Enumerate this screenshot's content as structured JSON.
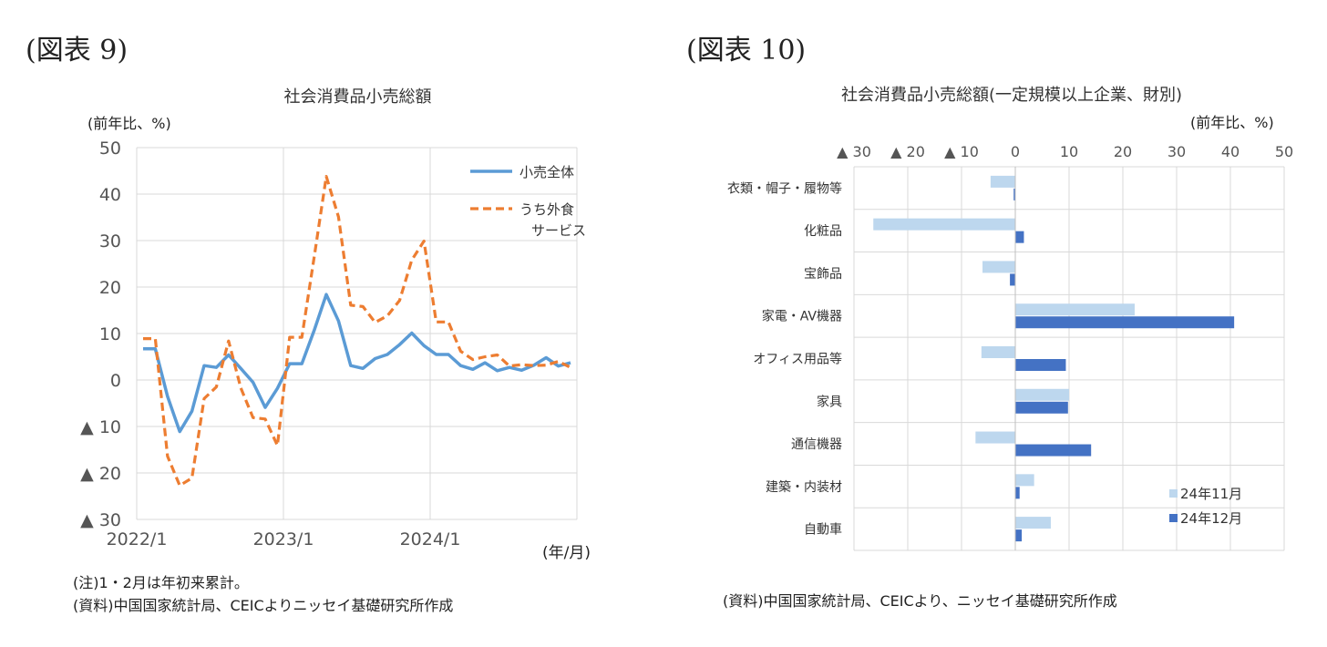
{
  "figure9": {
    "label": "(図表 9)",
    "unit": "(前年比、%)",
    "xunit": "(年/月)",
    "notes": [
      "(注)1・2月は年初来累計。",
      "(資料)中国国家統計局、CEICよりニッセイ基礎研究所作成"
    ]
  },
  "figure10": {
    "label": "(図表 10)",
    "unit": "(前年比、%)",
    "source": "(資料)中国国家統計局、CEICより、ニッセイ基礎研究所作成"
  },
  "chart_data": [
    {
      "type": "line",
      "title": "社会消費品小売総額",
      "ylabel": "(前年比、%)",
      "xlabel": "(年/月)",
      "ylim": [
        -30,
        50
      ],
      "yticks": [
        50,
        40,
        30,
        20,
        10,
        0,
        -10,
        -20,
        -30
      ],
      "ytick_labels": [
        "50",
        "40",
        "30",
        "20",
        "10",
        "0",
        "▲ 10",
        "▲ 20",
        "▲ 30"
      ],
      "xtick_labels": [
        "2022/1",
        "2023/1",
        "2024/1"
      ],
      "xtick_index": [
        0,
        12,
        24
      ],
      "x": [
        "2022/1",
        "2022/2",
        "2022/3",
        "2022/4",
        "2022/5",
        "2022/6",
        "2022/7",
        "2022/8",
        "2022/9",
        "2022/10",
        "2022/11",
        "2022/12",
        "2023/1",
        "2023/2",
        "2023/3",
        "2023/4",
        "2023/5",
        "2023/6",
        "2023/7",
        "2023/8",
        "2023/9",
        "2023/10",
        "2023/11",
        "2023/12",
        "2024/1",
        "2024/2",
        "2024/3",
        "2024/4",
        "2024/5",
        "2024/6",
        "2024/7",
        "2024/8",
        "2024/9",
        "2024/10",
        "2024/11",
        "2024/12"
      ],
      "series": [
        {
          "name": "小売全体",
          "style": "solid",
          "color": "#5b9bd5",
          "values": [
            6.7,
            6.7,
            -3.5,
            -11.1,
            -6.7,
            3.1,
            2.7,
            5.4,
            2.5,
            -0.5,
            -5.9,
            -1.8,
            3.5,
            3.5,
            10.6,
            18.4,
            12.7,
            3.1,
            2.5,
            4.6,
            5.5,
            7.6,
            10.1,
            7.4,
            5.5,
            5.5,
            3.1,
            2.3,
            3.7,
            2.0,
            2.7,
            2.1,
            3.2,
            4.8,
            3.0,
            3.7
          ]
        },
        {
          "name": "うち外食サービス",
          "style": "dashed",
          "color": "#ed7d31",
          "values": [
            8.9,
            8.9,
            -16.4,
            -22.7,
            -21.1,
            -4.0,
            -1.5,
            8.4,
            -1.7,
            -8.1,
            -8.4,
            -14.1,
            9.2,
            9.2,
            26.3,
            43.8,
            35.1,
            16.1,
            15.8,
            12.4,
            13.8,
            17.1,
            25.8,
            29.9,
            12.5,
            12.5,
            6.2,
            4.4,
            5.0,
            5.4,
            3.0,
            3.3,
            3.1,
            3.2,
            4.0,
            2.7
          ]
        }
      ]
    },
    {
      "type": "bar",
      "orientation": "horizontal",
      "title": "社会消費品小売総額(一定規模以上企業、財別)",
      "xlabel": "(前年比、%)",
      "xlim": [
        -30,
        50
      ],
      "xticks": [
        -30,
        -20,
        -10,
        0,
        10,
        20,
        30,
        40,
        50
      ],
      "xtick_labels": [
        "▲ 30",
        "▲ 20",
        "▲ 10",
        "0",
        "10",
        "20",
        "30",
        "40",
        "50"
      ],
      "categories": [
        "衣類・帽子・履物等",
        "化粧品",
        "宝飾品",
        "家電・AV機器",
        "オフィス用品等",
        "家具",
        "通信機器",
        "建築・内装材",
        "自動車"
      ],
      "series": [
        {
          "name": "24年11月",
          "color": "#bdd7ee",
          "values": [
            -4.6,
            -26.4,
            -6.1,
            22.2,
            -6.3,
            10.0,
            -7.4,
            3.5,
            6.6
          ]
        },
        {
          "name": "24年12月",
          "color": "#4472c4",
          "values": [
            -0.3,
            1.6,
            -1.0,
            40.7,
            9.4,
            9.8,
            14.1,
            0.8,
            1.2
          ]
        }
      ]
    }
  ]
}
